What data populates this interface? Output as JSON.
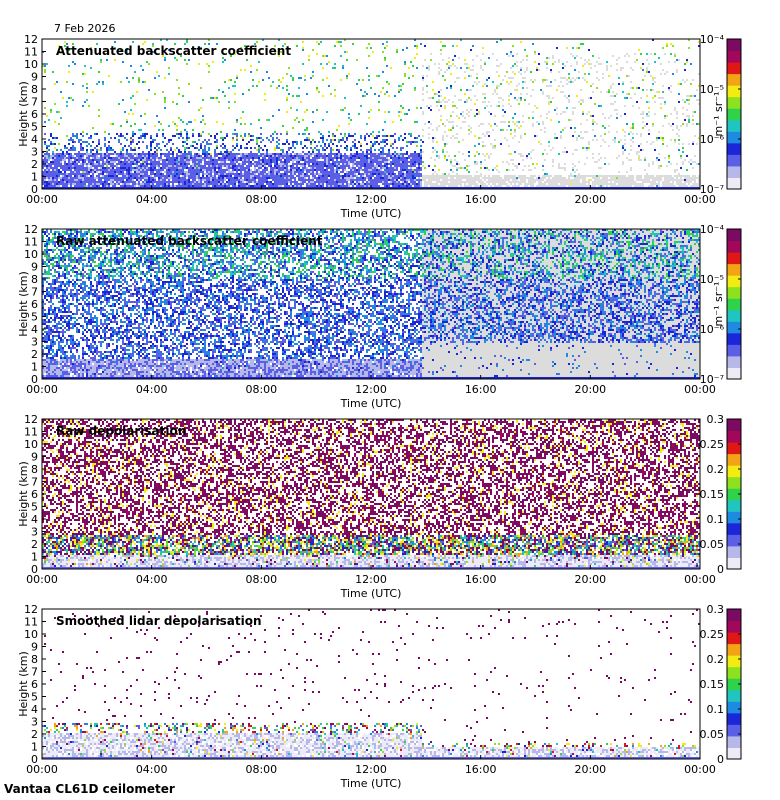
{
  "header": {
    "date": "7 Feb 2026"
  },
  "footer": {
    "instrument": "Vantaa CL61D ceilometer"
  },
  "colors": {
    "background_missing": "#dcdcdc",
    "colormap": [
      "#ecebf6",
      "#b7b8ea",
      "#5b5fe6",
      "#1c26d9",
      "#1f8be0",
      "#21c5c0",
      "#2fd24a",
      "#8ee11e",
      "#f2ec12",
      "#f3a316",
      "#e01717",
      "#a1085a",
      "#7b0a62"
    ]
  },
  "chart_data": [
    {
      "type": "heatmap",
      "title": "Attenuated backscatter coefficient",
      "xlabel": "Time (UTC)",
      "ylabel": "Height (km)",
      "x_ticks": [
        "00:00",
        "04:00",
        "08:00",
        "12:00",
        "16:00",
        "20:00",
        "00:00"
      ],
      "y_ticks": [
        "0",
        "1",
        "2",
        "3",
        "4",
        "5",
        "6",
        "7",
        "8",
        "9",
        "10",
        "11",
        "12"
      ],
      "ylim": [
        0,
        12
      ],
      "colorbar": {
        "scale": "log",
        "unit": "m⁻¹ sr⁻¹",
        "ticks": [
          "10⁻⁷",
          "10⁻⁶",
          "10⁻⁵",
          "10⁻⁴"
        ]
      }
    },
    {
      "type": "heatmap",
      "title": "Raw attenuated backscatter coefficient",
      "xlabel": "Time (UTC)",
      "ylabel": "Height (km)",
      "x_ticks": [
        "00:00",
        "04:00",
        "08:00",
        "12:00",
        "16:00",
        "20:00",
        "00:00"
      ],
      "y_ticks": [
        "0",
        "1",
        "2",
        "3",
        "4",
        "5",
        "6",
        "7",
        "8",
        "9",
        "10",
        "11",
        "12"
      ],
      "ylim": [
        0,
        12
      ],
      "colorbar": {
        "scale": "log",
        "unit": "m⁻¹ sr⁻¹",
        "ticks": [
          "10⁻⁷",
          "10⁻⁶",
          "10⁻⁵",
          "10⁻⁴"
        ]
      }
    },
    {
      "type": "heatmap",
      "title": "Raw depolarisation",
      "xlabel": "Time (UTC)",
      "ylabel": "Height (km)",
      "x_ticks": [
        "00:00",
        "04:00",
        "08:00",
        "12:00",
        "16:00",
        "20:00",
        "00:00"
      ],
      "y_ticks": [
        "0",
        "1",
        "2",
        "3",
        "4",
        "5",
        "6",
        "7",
        "8",
        "9",
        "10",
        "11",
        "12"
      ],
      "ylim": [
        0,
        12
      ],
      "colorbar": {
        "scale": "linear",
        "unit": "",
        "ticks": [
          "0",
          "0.05",
          "0.1",
          "0.15",
          "0.2",
          "0.25",
          "0.3"
        ]
      }
    },
    {
      "type": "heatmap",
      "title": "Smoothed lidar depolarisation",
      "xlabel": "Time (UTC)",
      "ylabel": "Height (km)",
      "x_ticks": [
        "00:00",
        "04:00",
        "08:00",
        "12:00",
        "16:00",
        "20:00",
        "00:00"
      ],
      "y_ticks": [
        "0",
        "1",
        "2",
        "3",
        "4",
        "5",
        "6",
        "7",
        "8",
        "9",
        "10",
        "11",
        "12"
      ],
      "ylim": [
        0,
        12
      ],
      "colorbar": {
        "scale": "linear",
        "unit": "",
        "ticks": [
          "0",
          "0.05",
          "0.1",
          "0.15",
          "0.2",
          "0.25",
          "0.3"
        ]
      }
    }
  ]
}
